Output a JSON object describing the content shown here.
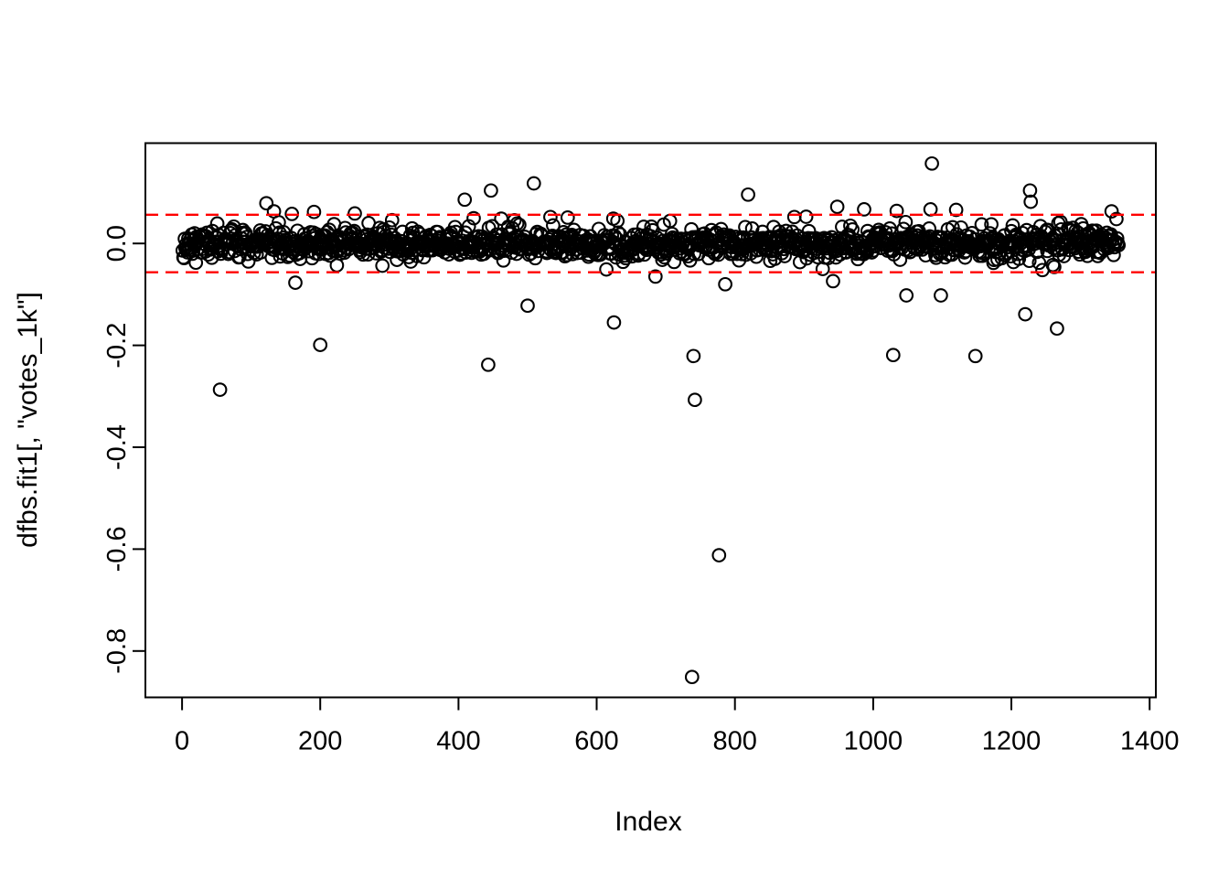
{
  "chart_data": {
    "type": "scatter",
    "title": "",
    "xlabel": "Index",
    "ylabel": "dfbs.fit1[, \"votes_1k\"]",
    "xlim": [
      -53,
      1409
    ],
    "ylim": [
      -0.891,
      0.197
    ],
    "grid": false,
    "legend_position": "none",
    "x_ticks": {
      "values": [
        0,
        200,
        400,
        600,
        800,
        1000,
        1200,
        1400
      ],
      "labels": [
        "0",
        "200",
        "400",
        "600",
        "800",
        "1000",
        "1200",
        "1400"
      ]
    },
    "y_ticks": {
      "values": [
        0.0,
        -0.2,
        -0.4,
        -0.6,
        -0.8
      ],
      "labels": [
        "0.0",
        "-0.2",
        "-0.4",
        "-0.6",
        "-0.8"
      ]
    },
    "colors": {
      "points": "#000000",
      "axes": "#000000",
      "threshold": "#FF0000",
      "background": "#FFFFFF"
    },
    "point_style": {
      "shape": "open-circle",
      "radius_px": 6.8,
      "stroke_px": 2.1
    },
    "threshold_lines": [
      {
        "y": 0.0565,
        "color": "#FF0000",
        "style": "dashed"
      },
      {
        "y": -0.0565,
        "color": "#FF0000",
        "style": "dashed"
      }
    ],
    "n_points": 1355,
    "band": {
      "comment": "dense cluster of DFBETAS values around zero, indices 1..1355",
      "index_start": 1,
      "index_end": 1355,
      "seed": 11,
      "sd_core": 0.0145,
      "sd_tail": 0.03,
      "tail_frac": 0.1,
      "clip": 0.053
    },
    "outliers": [
      [
        55,
        -0.287
      ],
      [
        122,
        0.079
      ],
      [
        133,
        0.063
      ],
      [
        159,
        0.058
      ],
      [
        164,
        -0.077
      ],
      [
        191,
        0.062
      ],
      [
        200,
        -0.199
      ],
      [
        250,
        0.059
      ],
      [
        409,
        0.086
      ],
      [
        443,
        -0.238
      ],
      [
        447,
        0.104
      ],
      [
        500,
        -0.122
      ],
      [
        509,
        0.118
      ],
      [
        533,
        0.052
      ],
      [
        625,
        -0.155
      ],
      [
        685,
        -0.065
      ],
      [
        738,
        -0.851
      ],
      [
        740,
        -0.221
      ],
      [
        742,
        -0.307
      ],
      [
        777,
        -0.612
      ],
      [
        786,
        -0.08
      ],
      [
        819,
        0.096
      ],
      [
        886,
        0.052
      ],
      [
        927,
        -0.05
      ],
      [
        942,
        -0.074
      ],
      [
        948,
        0.072
      ],
      [
        987,
        0.067
      ],
      [
        1029,
        -0.219
      ],
      [
        1034,
        0.064
      ],
      [
        1048,
        -0.102
      ],
      [
        1083,
        0.067
      ],
      [
        1085,
        0.157
      ],
      [
        1098,
        -0.102
      ],
      [
        1120,
        0.066
      ],
      [
        1148,
        -0.221
      ],
      [
        1220,
        -0.139
      ],
      [
        1227,
        0.104
      ],
      [
        1228,
        0.082
      ],
      [
        1266,
        -0.167
      ],
      [
        1345,
        0.063
      ]
    ]
  }
}
